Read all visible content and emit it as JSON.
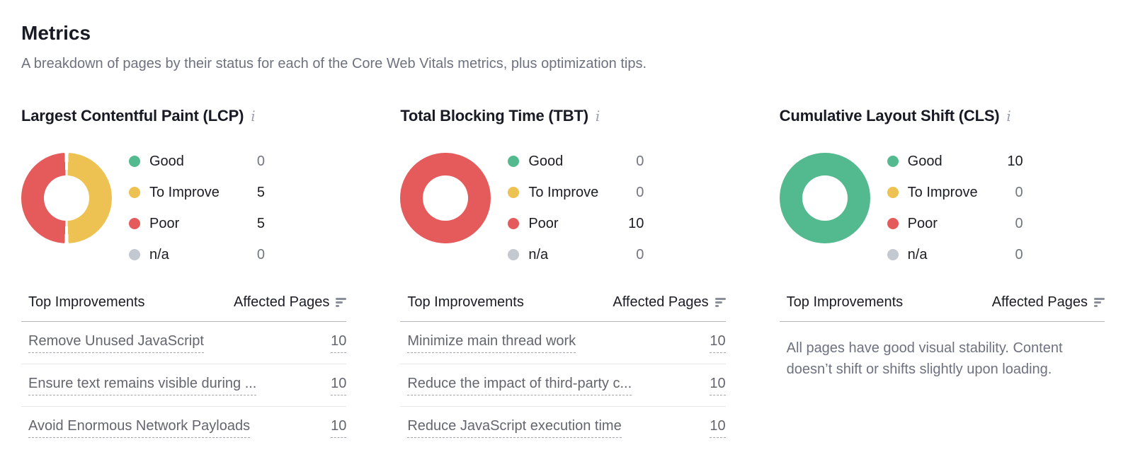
{
  "header": {
    "title": "Metrics",
    "subtitle": "A breakdown of pages by their status for each of the Core Web Vitals metrics, plus optimization tips."
  },
  "colors": {
    "good": "#53b98e",
    "to_improve": "#eec252",
    "poor": "#e55b5b",
    "na": "#c4c8d0"
  },
  "table": {
    "improvements_label": "Top Improvements",
    "affected_label": "Affected Pages"
  },
  "info_icon_glyph": "i",
  "metrics": [
    {
      "title": "Largest Contentful Paint (LCP)",
      "donut": {
        "type": "pie",
        "segments": [
          {
            "status": "to_improve",
            "label": "To Improve",
            "value": 5,
            "pct": 50
          },
          {
            "status": "poor",
            "label": "Poor",
            "value": 5,
            "pct": 50
          }
        ]
      },
      "legend": [
        {
          "label": "Good",
          "status": "good",
          "value": "0"
        },
        {
          "label": "To Improve",
          "status": "to_improve",
          "value": "5"
        },
        {
          "label": "Poor",
          "status": "poor",
          "value": "5"
        },
        {
          "label": "n/a",
          "status": "na",
          "value": "0"
        }
      ],
      "improvements": [
        {
          "label": "Remove Unused JavaScript",
          "affected_pages": "10"
        },
        {
          "label": "Ensure text remains visible during ...",
          "affected_pages": "10"
        },
        {
          "label": "Avoid Enormous Network Payloads",
          "affected_pages": "10"
        }
      ]
    },
    {
      "title": "Total Blocking Time (TBT)",
      "donut": {
        "type": "pie",
        "segments": [
          {
            "status": "poor",
            "label": "Poor",
            "value": 10,
            "pct": 100
          }
        ]
      },
      "legend": [
        {
          "label": "Good",
          "status": "good",
          "value": "0"
        },
        {
          "label": "To Improve",
          "status": "to_improve",
          "value": "0"
        },
        {
          "label": "Poor",
          "status": "poor",
          "value": "10"
        },
        {
          "label": "n/a",
          "status": "na",
          "value": "0"
        }
      ],
      "improvements": [
        {
          "label": "Minimize main thread work",
          "affected_pages": "10"
        },
        {
          "label": "Reduce the impact of third-party c...",
          "affected_pages": "10"
        },
        {
          "label": "Reduce JavaScript execution time",
          "affected_pages": "10"
        }
      ]
    },
    {
      "title": "Cumulative Layout Shift (CLS)",
      "donut": {
        "type": "pie",
        "segments": [
          {
            "status": "good",
            "label": "Good",
            "value": 10,
            "pct": 100
          }
        ]
      },
      "legend": [
        {
          "label": "Good",
          "status": "good",
          "value": "10"
        },
        {
          "label": "To Improve",
          "status": "to_improve",
          "value": "0"
        },
        {
          "label": "Poor",
          "status": "poor",
          "value": "0"
        },
        {
          "label": "n/a",
          "status": "na",
          "value": "0"
        }
      ],
      "improvements": [],
      "empty_message": "All pages have good visual stability. Content doesn’t shift or shifts slightly upon loading."
    }
  ]
}
